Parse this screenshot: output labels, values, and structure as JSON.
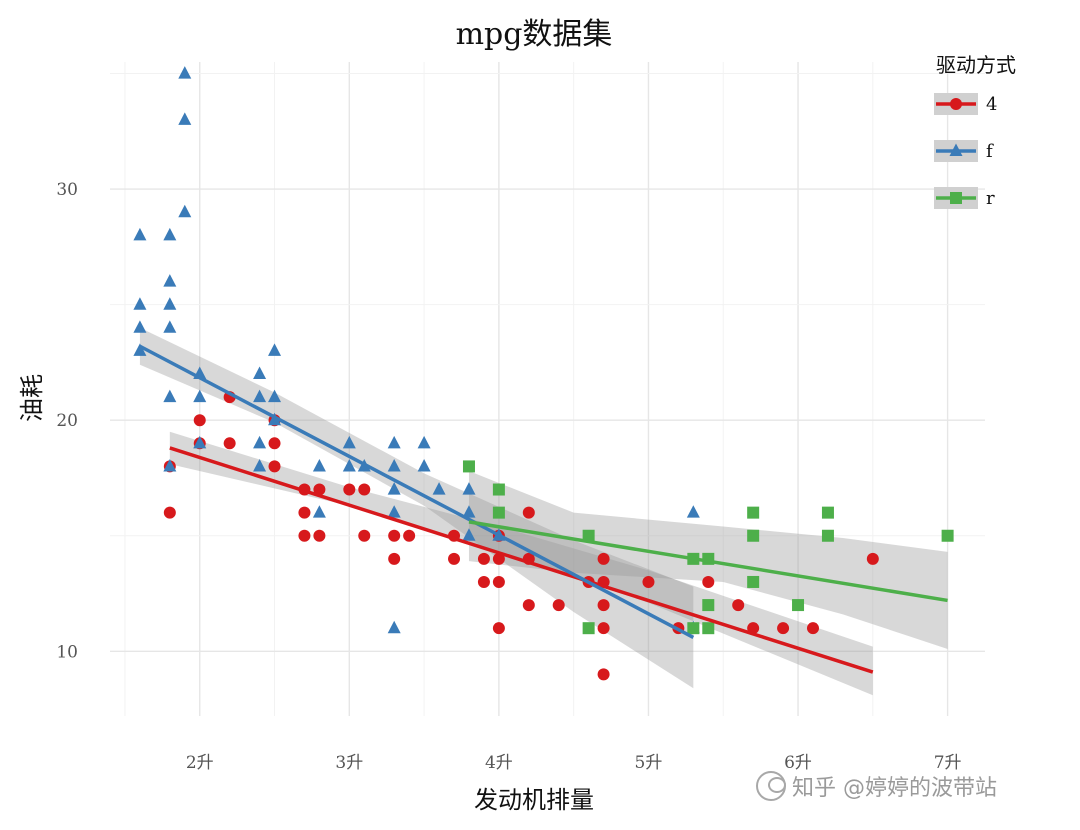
{
  "chart_data": {
    "type": "scatter",
    "title": "mpg数据集",
    "xlabel": "发动机排量",
    "ylabel": "油耗",
    "xlim": [
      1.4,
      7.25
    ],
    "ylim": [
      7.2,
      35.5
    ],
    "x_ticks": [
      {
        "value": 2,
        "label": "2升"
      },
      {
        "value": 3,
        "label": "3升"
      },
      {
        "value": 4,
        "label": "4升"
      },
      {
        "value": 5,
        "label": "5升"
      },
      {
        "value": 6,
        "label": "6升"
      },
      {
        "value": 7,
        "label": "7升"
      }
    ],
    "y_ticks": [
      {
        "value": 10,
        "label": "10"
      },
      {
        "value": 20,
        "label": "20"
      },
      {
        "value": 30,
        "label": "30"
      }
    ],
    "grid": true,
    "legend": {
      "title": "驱动方式",
      "position": "top-right",
      "entries": [
        {
          "label": "4",
          "color": "#d7191c",
          "shape": "circle"
        },
        {
          "label": "f",
          "color": "#3a7bb8",
          "shape": "triangle"
        },
        {
          "label": "r",
          "color": "#4daf4a",
          "shape": "square"
        }
      ]
    },
    "series": [
      {
        "name": "4",
        "color": "#d7191c",
        "shape": "circle",
        "fit": {
          "x": [
            1.8,
            6.5
          ],
          "y": [
            18.8,
            9.1
          ]
        },
        "ribbon": {
          "x": [
            1.8,
            3.0,
            4.0,
            5.0,
            6.5
          ],
          "upper": [
            19.5,
            17.1,
            15.4,
            13.5,
            10.2
          ],
          "lower": [
            18.1,
            16.3,
            14.3,
            12.1,
            8.1
          ]
        },
        "points": [
          [
            1.8,
            18
          ],
          [
            1.8,
            16
          ],
          [
            2,
            20
          ],
          [
            2,
            19
          ],
          [
            2.2,
            19
          ],
          [
            2.2,
            21
          ],
          [
            2.5,
            18
          ],
          [
            2.5,
            19
          ],
          [
            2.5,
            20
          ],
          [
            2.7,
            16
          ],
          [
            2.7,
            15
          ],
          [
            2.7,
            17
          ],
          [
            2.8,
            17
          ],
          [
            2.8,
            15
          ],
          [
            3,
            17
          ],
          [
            3.1,
            17
          ],
          [
            3.1,
            15
          ],
          [
            3.3,
            15
          ],
          [
            3.3,
            14
          ],
          [
            3.4,
            15
          ],
          [
            3.7,
            15
          ],
          [
            3.7,
            14
          ],
          [
            3.9,
            14
          ],
          [
            3.9,
            13
          ],
          [
            4,
            14
          ],
          [
            4,
            13
          ],
          [
            4,
            11
          ],
          [
            4,
            15
          ],
          [
            4.2,
            16
          ],
          [
            4.2,
            14
          ],
          [
            4.2,
            12
          ],
          [
            4.4,
            12
          ],
          [
            4.6,
            13
          ],
          [
            4.7,
            14
          ],
          [
            4.7,
            13
          ],
          [
            4.7,
            12
          ],
          [
            4.7,
            11
          ],
          [
            4.7,
            9
          ],
          [
            5,
            13
          ],
          [
            5.2,
            11
          ],
          [
            5.4,
            13
          ],
          [
            5.6,
            12
          ],
          [
            5.7,
            11
          ],
          [
            5.9,
            11
          ],
          [
            6.1,
            11
          ],
          [
            6.5,
            14
          ]
        ]
      },
      {
        "name": "f",
        "color": "#3a7bb8",
        "shape": "triangle",
        "fit": {
          "x": [
            1.6,
            5.3
          ],
          "y": [
            23.2,
            10.6
          ]
        },
        "ribbon": {
          "x": [
            1.6,
            2.5,
            3.5,
            4.5,
            5.3
          ],
          "upper": [
            24.0,
            21.2,
            17.7,
            14.8,
            12.8
          ],
          "lower": [
            22.4,
            19.9,
            16.3,
            11.7,
            8.4
          ]
        },
        "points": [
          [
            1.6,
            28
          ],
          [
            1.6,
            25
          ],
          [
            1.6,
            24
          ],
          [
            1.6,
            23
          ],
          [
            1.8,
            28
          ],
          [
            1.8,
            26
          ],
          [
            1.8,
            25
          ],
          [
            1.8,
            24
          ],
          [
            1.8,
            21
          ],
          [
            1.8,
            18
          ],
          [
            1.9,
            35
          ],
          [
            1.9,
            33
          ],
          [
            1.9,
            29
          ],
          [
            2,
            22
          ],
          [
            2,
            21
          ],
          [
            2,
            19
          ],
          [
            2.4,
            22
          ],
          [
            2.4,
            21
          ],
          [
            2.4,
            19
          ],
          [
            2.4,
            18
          ],
          [
            2.5,
            23
          ],
          [
            2.5,
            21
          ],
          [
            2.5,
            20
          ],
          [
            2.8,
            18
          ],
          [
            2.8,
            16
          ],
          [
            3,
            19
          ],
          [
            3,
            18
          ],
          [
            3.1,
            18
          ],
          [
            3.3,
            19
          ],
          [
            3.3,
            18
          ],
          [
            3.3,
            17
          ],
          [
            3.3,
            16
          ],
          [
            3.3,
            11
          ],
          [
            3.5,
            19
          ],
          [
            3.5,
            18
          ],
          [
            3.6,
            17
          ],
          [
            3.8,
            17
          ],
          [
            3.8,
            16
          ],
          [
            3.8,
            15
          ],
          [
            4,
            15
          ],
          [
            5.3,
            16
          ],
          [
            5.3,
            11
          ]
        ]
      },
      {
        "name": "r",
        "color": "#4daf4a",
        "shape": "square",
        "fit": {
          "x": [
            3.8,
            7.0
          ],
          "y": [
            15.6,
            12.2
          ]
        },
        "ribbon": {
          "x": [
            3.8,
            4.5,
            5.5,
            6.3,
            7.0
          ],
          "upper": [
            17.8,
            16.0,
            15.4,
            14.9,
            14.3
          ],
          "lower": [
            13.9,
            13.4,
            13.0,
            11.6,
            10.1
          ]
        },
        "points": [
          [
            3.8,
            18
          ],
          [
            4,
            17
          ],
          [
            4,
            16
          ],
          [
            4.6,
            15
          ],
          [
            4.6,
            11
          ],
          [
            5.3,
            14
          ],
          [
            5.3,
            11
          ],
          [
            5.4,
            14
          ],
          [
            5.4,
            12
          ],
          [
            5.4,
            11
          ],
          [
            5.7,
            16
          ],
          [
            5.7,
            15
          ],
          [
            5.7,
            13
          ],
          [
            6,
            12
          ],
          [
            6.2,
            16
          ],
          [
            6.2,
            15
          ],
          [
            7,
            15
          ]
        ]
      }
    ]
  },
  "watermark": {
    "text": "知乎 @婷婷的波带站"
  }
}
